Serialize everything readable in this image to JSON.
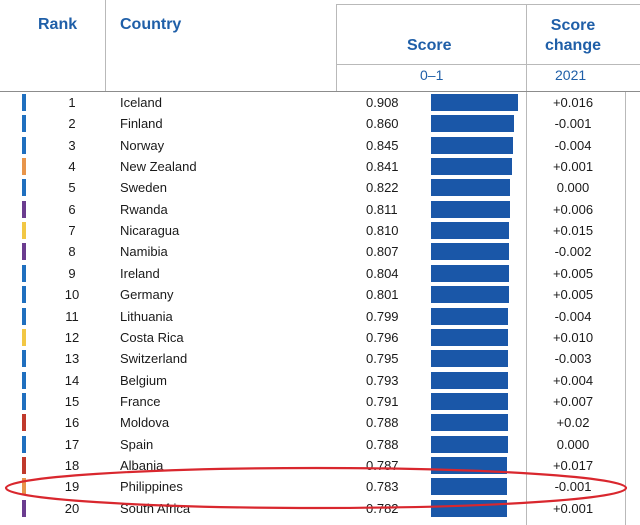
{
  "header": {
    "rank": "Rank",
    "country": "Country",
    "score": "Score",
    "score_change_line1": "Score",
    "score_change_line2": "change",
    "score_range": "0–1",
    "change_year": "2021"
  },
  "colors": {
    "header_text": "#1f5fa8",
    "bar": "#1a57a8",
    "highlight_oval": "#d9272e"
  },
  "chart_data": {
    "type": "bar",
    "xlim": [
      0,
      1
    ],
    "rows": [
      {
        "rank": "1",
        "country": "Iceland",
        "score": "0.908",
        "value": 0.908,
        "change": "+0.016",
        "marker": "#1f6fbf"
      },
      {
        "rank": "2",
        "country": "Finland",
        "score": "0.860",
        "value": 0.86,
        "change": "-0.001",
        "marker": "#1f6fbf"
      },
      {
        "rank": "3",
        "country": "Norway",
        "score": "0.845",
        "value": 0.845,
        "change": "-0.004",
        "marker": "#1f6fbf"
      },
      {
        "rank": "4",
        "country": "New Zealand",
        "score": "0.841",
        "value": 0.841,
        "change": "+0.001",
        "marker": "#e8954a"
      },
      {
        "rank": "5",
        "country": "Sweden",
        "score": "0.822",
        "value": 0.822,
        "change": "0.000",
        "marker": "#1f6fbf"
      },
      {
        "rank": "6",
        "country": "Rwanda",
        "score": "0.811",
        "value": 0.811,
        "change": "+0.006",
        "marker": "#6b3c8f"
      },
      {
        "rank": "7",
        "country": "Nicaragua",
        "score": "0.810",
        "value": 0.81,
        "change": "+0.015",
        "marker": "#f2c744"
      },
      {
        "rank": "8",
        "country": "Namibia",
        "score": "0.807",
        "value": 0.807,
        "change": "-0.002",
        "marker": "#6b3c8f"
      },
      {
        "rank": "9",
        "country": "Ireland",
        "score": "0.804",
        "value": 0.804,
        "change": "+0.005",
        "marker": "#1f6fbf"
      },
      {
        "rank": "10",
        "country": "Germany",
        "score": "0.801",
        "value": 0.801,
        "change": "+0.005",
        "marker": "#1f6fbf"
      },
      {
        "rank": "11",
        "country": "Lithuania",
        "score": "0.799",
        "value": 0.799,
        "change": "-0.004",
        "marker": "#1f6fbf"
      },
      {
        "rank": "12",
        "country": "Costa Rica",
        "score": "0.796",
        "value": 0.796,
        "change": "+0.010",
        "marker": "#f2c744"
      },
      {
        "rank": "13",
        "country": "Switzerland",
        "score": "0.795",
        "value": 0.795,
        "change": "-0.003",
        "marker": "#1f6fbf"
      },
      {
        "rank": "14",
        "country": "Belgium",
        "score": "0.793",
        "value": 0.793,
        "change": "+0.004",
        "marker": "#1f6fbf"
      },
      {
        "rank": "15",
        "country": "France",
        "score": "0.791",
        "value": 0.791,
        "change": "+0.007",
        "marker": "#1f6fbf"
      },
      {
        "rank": "16",
        "country": "Moldova",
        "score": "0.788",
        "value": 0.788,
        "change": "+0.02",
        "marker": "#c0392b"
      },
      {
        "rank": "17",
        "country": "Spain",
        "score": "0.788",
        "value": 0.788,
        "change": "0.000",
        "marker": "#1f6fbf"
      },
      {
        "rank": "18",
        "country": "Albania",
        "score": "0.787",
        "value": 0.787,
        "change": "+0.017",
        "marker": "#c0392b"
      },
      {
        "rank": "19",
        "country": "Philippines",
        "score": "0.783",
        "value": 0.783,
        "change": "-0.001",
        "marker": "#e8954a"
      },
      {
        "rank": "20",
        "country": "South Africa",
        "score": "0.782",
        "value": 0.782,
        "change": "+0.001",
        "marker": "#6b3c8f"
      }
    ],
    "highlighted_rank": "19"
  }
}
